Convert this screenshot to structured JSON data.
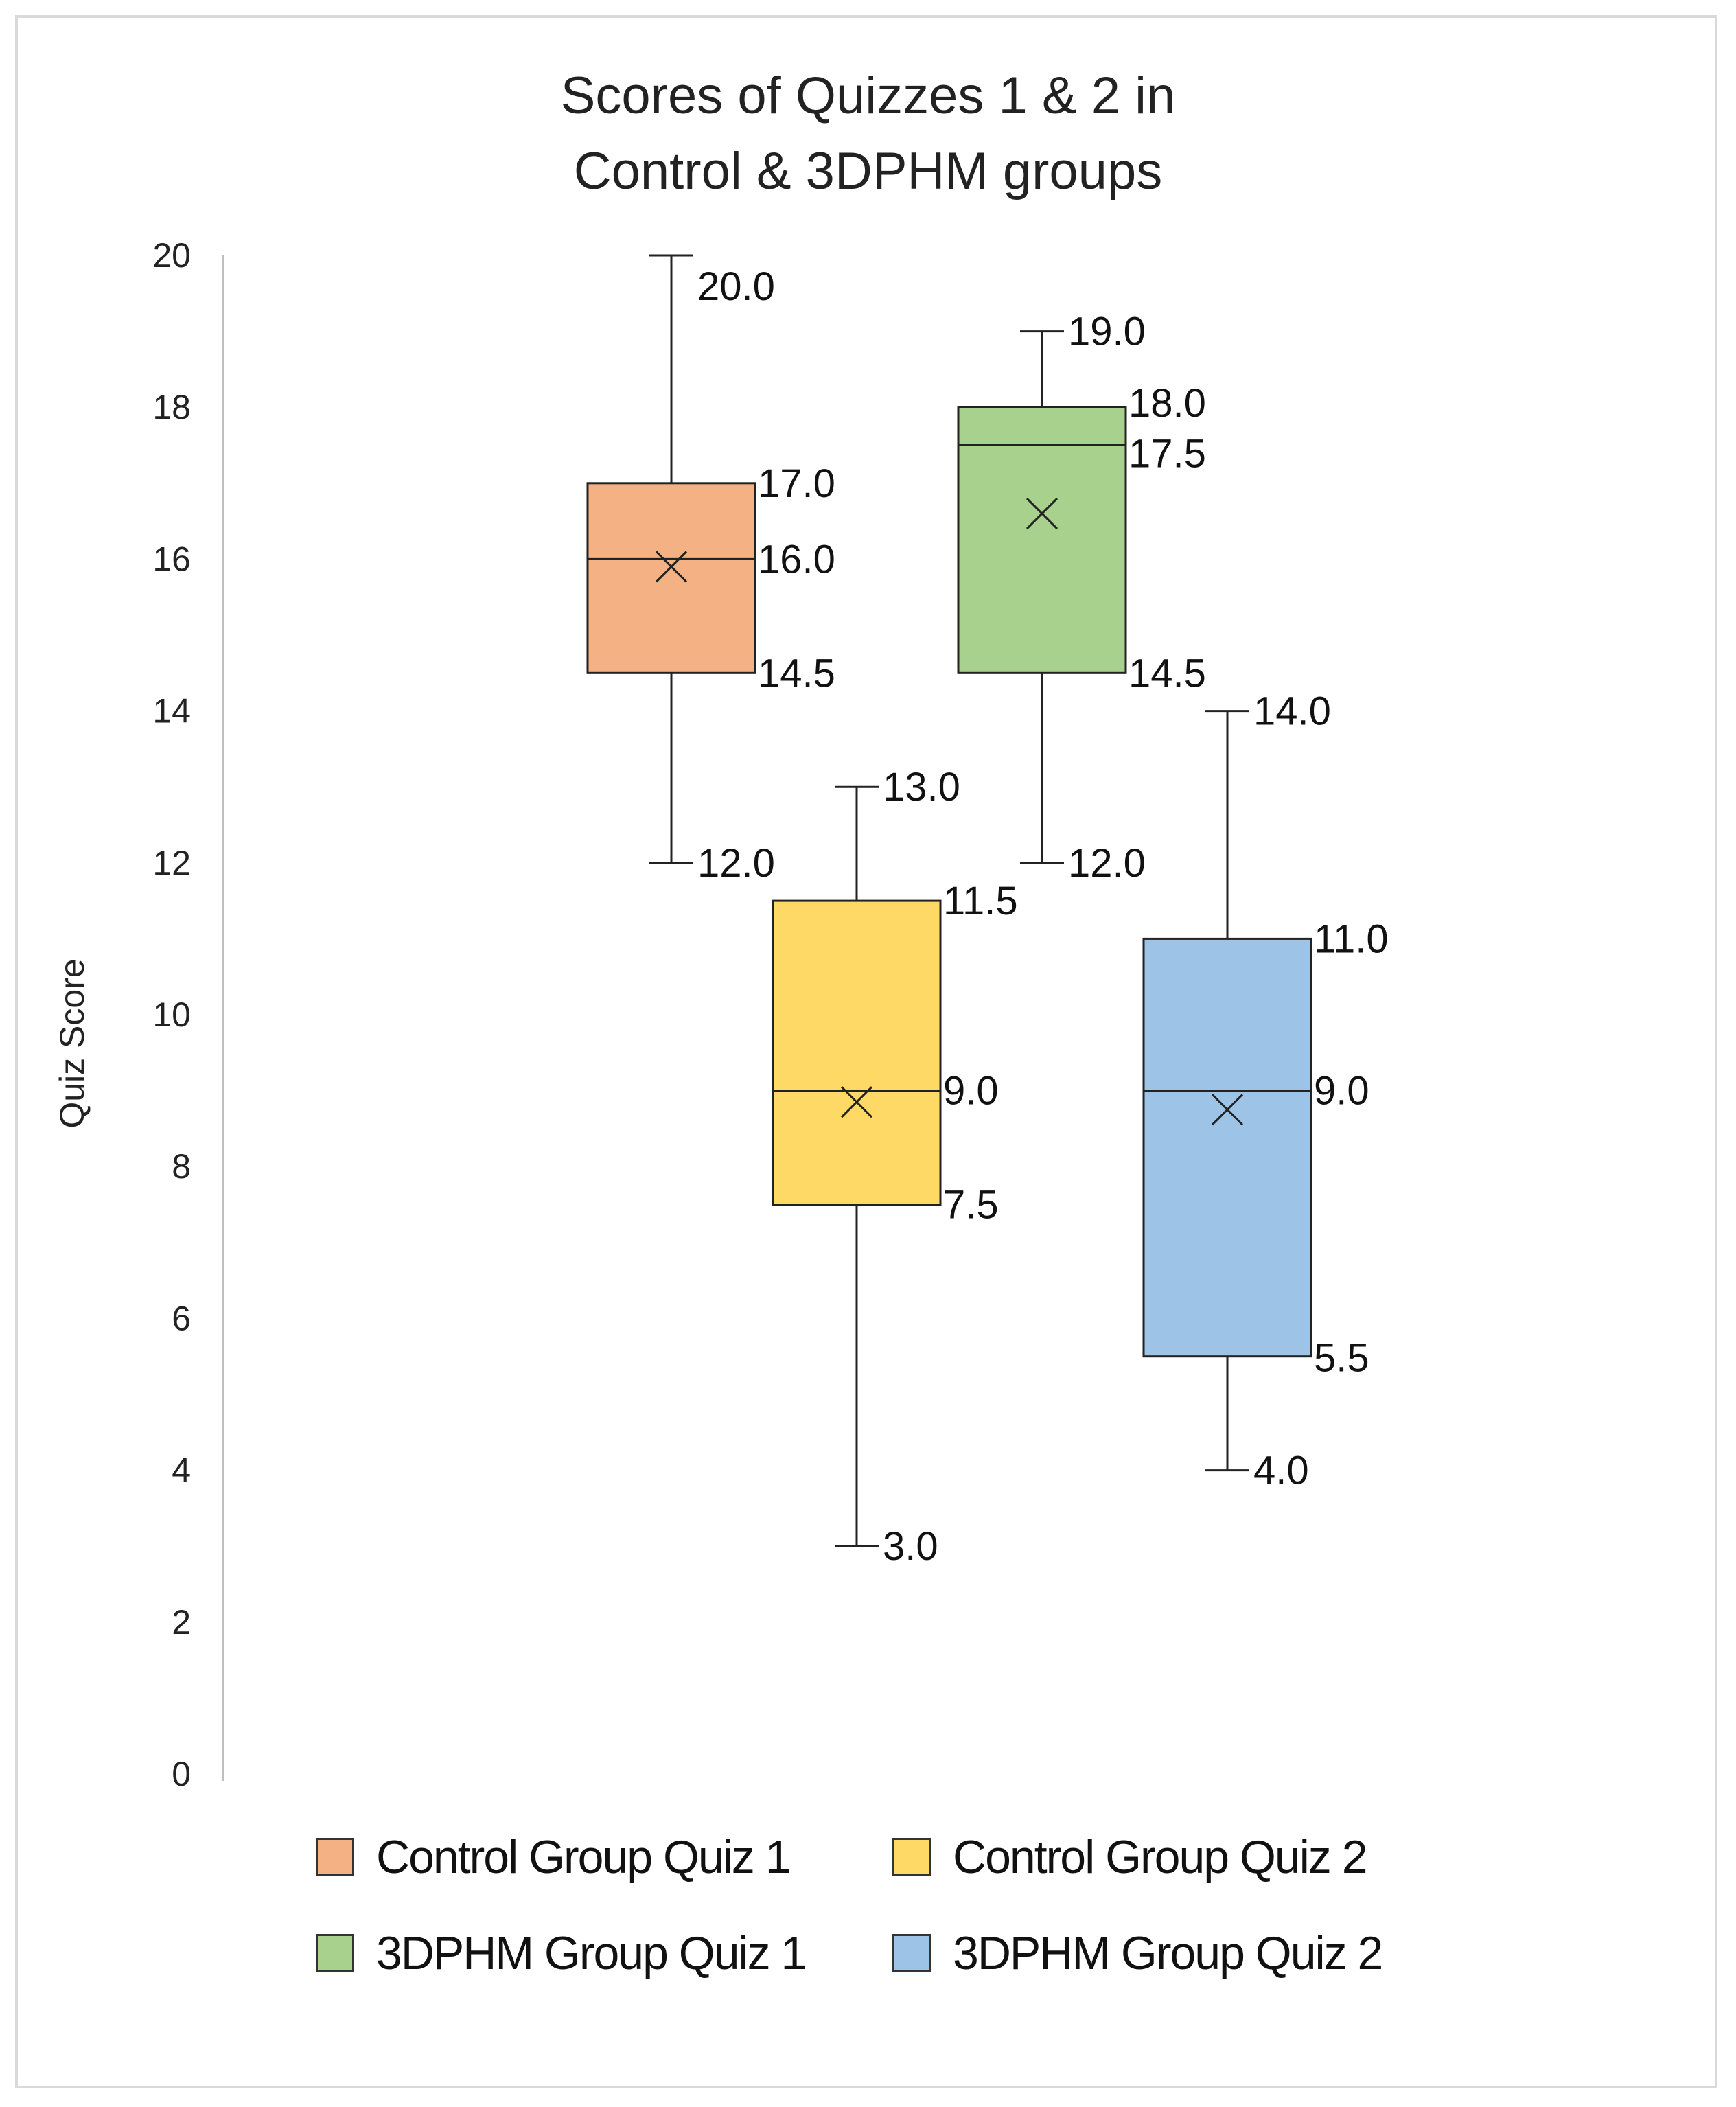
{
  "chart_data": {
    "type": "boxplot",
    "title": "Scores of Quizzes 1 & 2 in\nControl & 3DPHM groups",
    "title_lines": [
      "Scores of Quizzes 1 & 2 in",
      "Control & 3DPHM groups"
    ],
    "xlabel": "",
    "ylabel": "Quiz Score",
    "ylim": [
      0,
      20
    ],
    "yticks": [
      0,
      2,
      4,
      6,
      8,
      10,
      12,
      14,
      16,
      18,
      20
    ],
    "grid": false,
    "legend_position": "bottom",
    "series": [
      {
        "name": "Control Group Quiz 1",
        "color": "#f4b183",
        "min": 12.0,
        "q1": 14.5,
        "median": 16.0,
        "q3": 17.0,
        "max": 20.0,
        "mean": 15.9,
        "labels": {
          "max": "20.0",
          "q3": "17.0",
          "median": "16.0",
          "q1": "14.5",
          "min": "12.0"
        }
      },
      {
        "name": "Control Group Quiz 2",
        "color": "#ffd966",
        "min": 3.0,
        "q1": 7.5,
        "median": 9.0,
        "q3": 11.5,
        "max": 13.0,
        "mean": 8.85,
        "labels": {
          "max": "13.0",
          "q3": "11.5",
          "median": "9.0",
          "q1": "7.5",
          "min": "3.0"
        }
      },
      {
        "name": "3DPHM Group Quiz 1",
        "color": "#a9d18e",
        "min": 12.0,
        "q1": 14.5,
        "median": 17.5,
        "q3": 18.0,
        "max": 19.0,
        "mean": 16.6,
        "labels": {
          "max": "19.0",
          "q3": "18.0",
          "median": "17.5",
          "q1": "14.5",
          "min": "12.0"
        }
      },
      {
        "name": "3DPHM Group Quiz 2",
        "color": "#9dc3e6",
        "min": 4.0,
        "q1": 5.5,
        "median": 9.0,
        "q3": 11.0,
        "max": 14.0,
        "mean": 8.75,
        "labels": {
          "max": "14.0",
          "q3": "11.0",
          "median": "9.0",
          "q1": "5.5",
          "min": "4.0"
        }
      }
    ]
  }
}
